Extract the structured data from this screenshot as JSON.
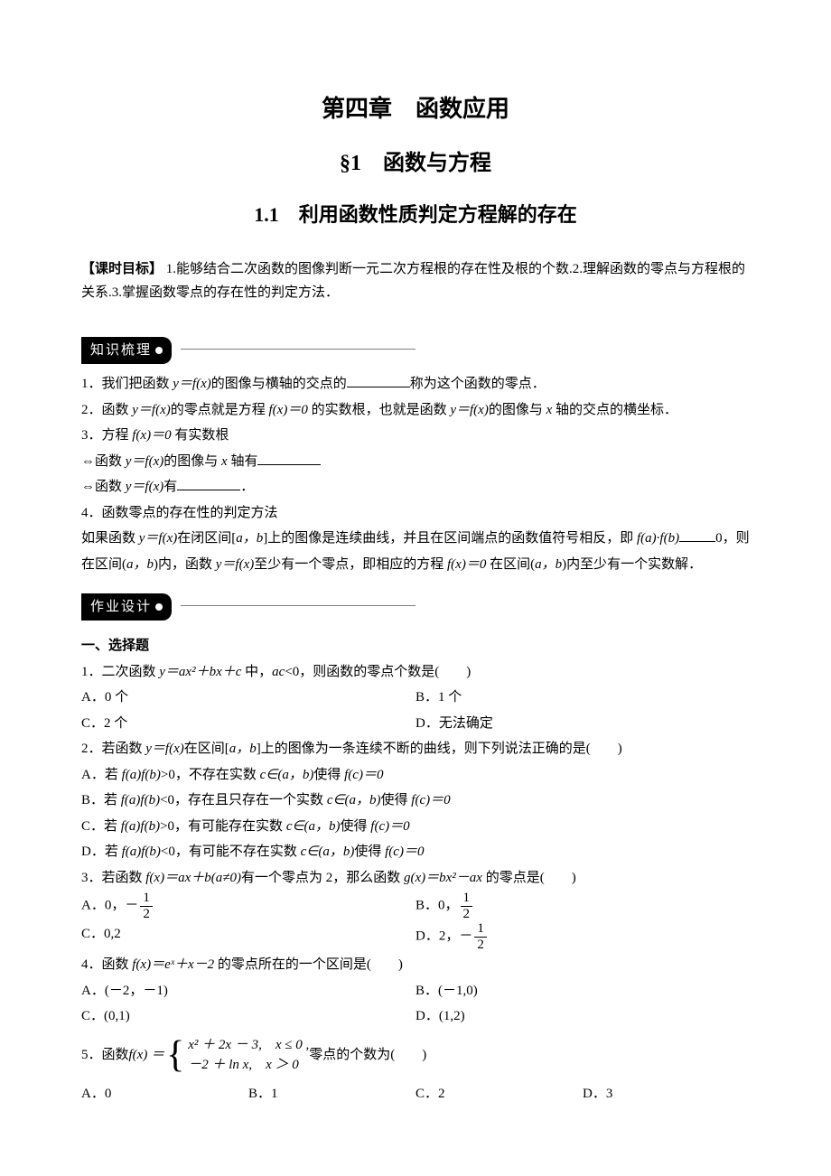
{
  "chapter": "第四章　函数应用",
  "section": "§1　函数与方程",
  "subsection": "1.1　利用函数性质判定方程解的存在",
  "objective_label": "【课时目标】",
  "objective_text": "1.能够结合二次函数的图像判断一元二次方程根的存在性及根的个数.2.理解函数的零点与方程根的关系.3.掌握函数零点的存在性的判定方法．",
  "zhishi_header": "知识梳理",
  "zhishi": {
    "l1_a": "1．我们把函数 ",
    "l1_yfx": "y＝f(x)",
    "l1_b": "的图像与横轴的交点的",
    "l1_c": "称为这个函数的零点．",
    "l2_a": "2．函数 ",
    "l2_b": "的零点就是方程 ",
    "l2_fx0": "f(x)＝0",
    "l2_c": " 的实数根，也就是函数 ",
    "l2_d": "的图像与 ",
    "l2_x": "x",
    "l2_e": " 轴的交点的横坐标．",
    "l3_a": "3．方程 ",
    "l3_b": " 有实数根",
    "l4_a": "⇔函数 ",
    "l4_b": "的图像与 ",
    "l4_c": " 轴有",
    "l5_a": "⇔函数 ",
    "l5_b": "有",
    "l5_c": "．",
    "l6": "4．函数零点的存在性的判定方法",
    "l7_a": "如果函数 ",
    "l7_b": "在闭区间[",
    "l7_ab1": "a，b",
    "l7_c": "]上的图像是连续曲线，并且在区间端点的函数值符号相反，即 ",
    "l7_fab": "f(a)·f(b)",
    "l7_d": "0，则在区间(",
    "l7_ab2": "a，b",
    "l7_e": ")内，函数 ",
    "l7_f": "至少有一个零点，即相应的方程 ",
    "l7_g": " 在区间(",
    "l7_h": ")内至少有一个实数解．"
  },
  "zuoye_header": "作业设计",
  "xuanze_head": "一、选择题",
  "q1": {
    "stem_a": "1．二次函数 ",
    "stem_eq": "y＝ax²＋bx＋c",
    "stem_b": " 中，",
    "stem_ac": "ac",
    "stem_c": "<0，则函数的零点个数是(　　)",
    "A": "A．0 个",
    "B": "B．1 个",
    "C": "C．2 个",
    "D": "D．无法确定"
  },
  "q2": {
    "stem_a": "2．若函数 ",
    "stem_yfx": "y＝f(x)",
    "stem_b": "在区间[",
    "stem_ab": "a，b",
    "stem_c": "]上的图像为一条连续不断的曲线，则下列说法正确的是(　　)",
    "A_a": "A．若 ",
    "A_fab": "f(a)f(b)",
    "A_b": ">0，不存在实数 ",
    "A_c": "c∈(a，b)",
    "A_d": "使得 ",
    "A_fc": "f(c)＝0",
    "B_a": "B．若 ",
    "B_b": "<0，存在且只存在一个实数 ",
    "B_c": "c∈(a，b)",
    "B_d": "使得 ",
    "C_a": "C．若 ",
    "C_b": ">0，有可能存在实数 ",
    "C_c": "c∈(a，b)",
    "C_d": "使得 ",
    "D_a": "D．若 ",
    "D_b": "<0，有可能不存在实数 ",
    "D_c": "c∈(a，b)",
    "D_d": "使得 "
  },
  "q3": {
    "stem_a": "3．若函数 ",
    "stem_fx": "f(x)＝ax＋b(a≠0)",
    "stem_b": "有一个零点为 2，那么函数 ",
    "stem_gx": "g(x)＝bx²－ax",
    "stem_c": " 的零点是(　　)",
    "A_pre": "A．0，",
    "B_pre": "B．0，",
    "C": "C．0,2",
    "D_pre": "D．2，",
    "half_num": "1",
    "half_den": "2",
    "neg": "－"
  },
  "q4": {
    "stem_a": "4．函数 ",
    "stem_fx": "f(x)＝eˣ＋x－2",
    "stem_b": " 的零点所在的一个区间是(　　)",
    "A": "A．(－2，－1)",
    "B": "B．(－1,0)",
    "C": "C．(0,1)",
    "D": "D．(1,2)"
  },
  "q5": {
    "stem_a": "5．函数",
    "fx_eq": "f(x) ＝ ",
    "case1": "x² ＋ 2x － 3,　x ≤ 0 ,",
    "case2": "－2 ＋ ln x,　x ＞ 0",
    "stem_b": "零点的个数为(　　)",
    "A": "A．0",
    "B": "B．1",
    "C": "C．2",
    "D": "D．3"
  }
}
